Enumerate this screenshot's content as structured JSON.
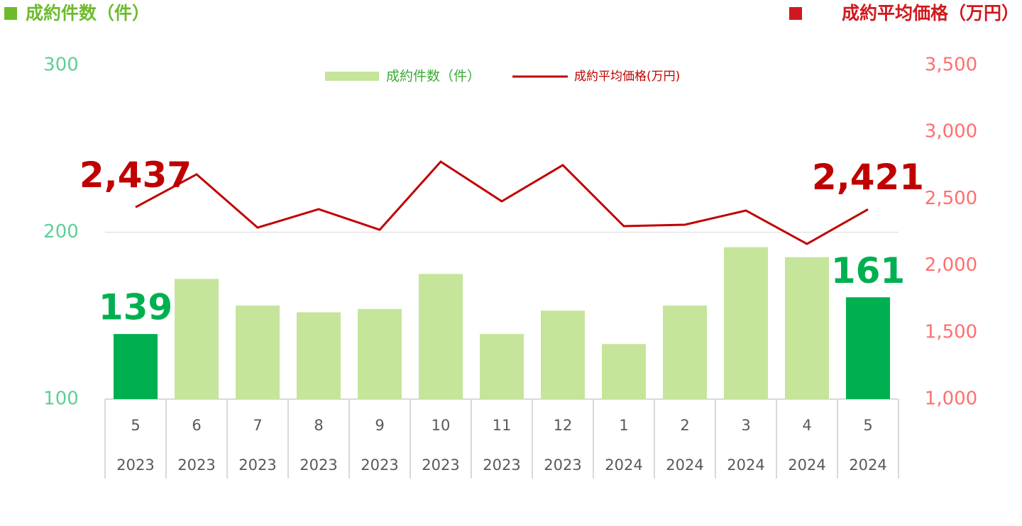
{
  "chart_data": {
    "type": "bar-line",
    "left_title": "成約件数（件）",
    "right_title": "成約平均価格（万円）",
    "categories": [
      "5",
      "6",
      "7",
      "8",
      "9",
      "10",
      "11",
      "12",
      "1",
      "2",
      "3",
      "4",
      "5"
    ],
    "years": [
      "2023",
      "2023",
      "2023",
      "2023",
      "2023",
      "2023",
      "2023",
      "2023",
      "2024",
      "2024",
      "2024",
      "2024",
      "2024"
    ],
    "series": [
      {
        "name": "成約件数（件）",
        "type": "bar",
        "color": "#c5e59b",
        "highlight_color": "#00b050",
        "colors": [
          "#00b050",
          "#c5e59b",
          "#c5e59b",
          "#c5e59b",
          "#c5e59b",
          "#c5e59b",
          "#c5e59b",
          "#c5e59b",
          "#c5e59b",
          "#c5e59b",
          "#c5e59b",
          "#c5e59b",
          "#00b050"
        ],
        "values": [
          139,
          172,
          156,
          152,
          154,
          175,
          139,
          153,
          133,
          156,
          191,
          185,
          161
        ],
        "value_labels": [
          "139",
          null,
          null,
          null,
          null,
          null,
          null,
          null,
          null,
          null,
          null,
          null,
          "161"
        ]
      },
      {
        "name": "成約平均価格(万円)",
        "type": "line",
        "axis": "y2",
        "color": "#c00000",
        "values": [
          2437,
          2683,
          2284,
          2422,
          2268,
          2778,
          2481,
          2752,
          2295,
          2306,
          2412,
          2162,
          2421
        ],
        "value_labels": [
          "2,437",
          null,
          null,
          null,
          null,
          null,
          null,
          null,
          null,
          null,
          null,
          null,
          "2,421"
        ]
      }
    ],
    "ylim": [
      100,
      300
    ],
    "yticks": [
      100,
      200,
      300
    ],
    "y2lim": [
      1000,
      3500
    ],
    "y2ticks": [
      {
        "value": 1000,
        "label": "1,000"
      },
      {
        "value": 1500,
        "label": "1,500"
      },
      {
        "value": 2000,
        "label": "2,000"
      },
      {
        "value": 2500,
        "label": "2,500"
      },
      {
        "value": 3000,
        "label": "3,000"
      },
      {
        "value": 3500,
        "label": "3,500"
      }
    ],
    "grid": true
  }
}
